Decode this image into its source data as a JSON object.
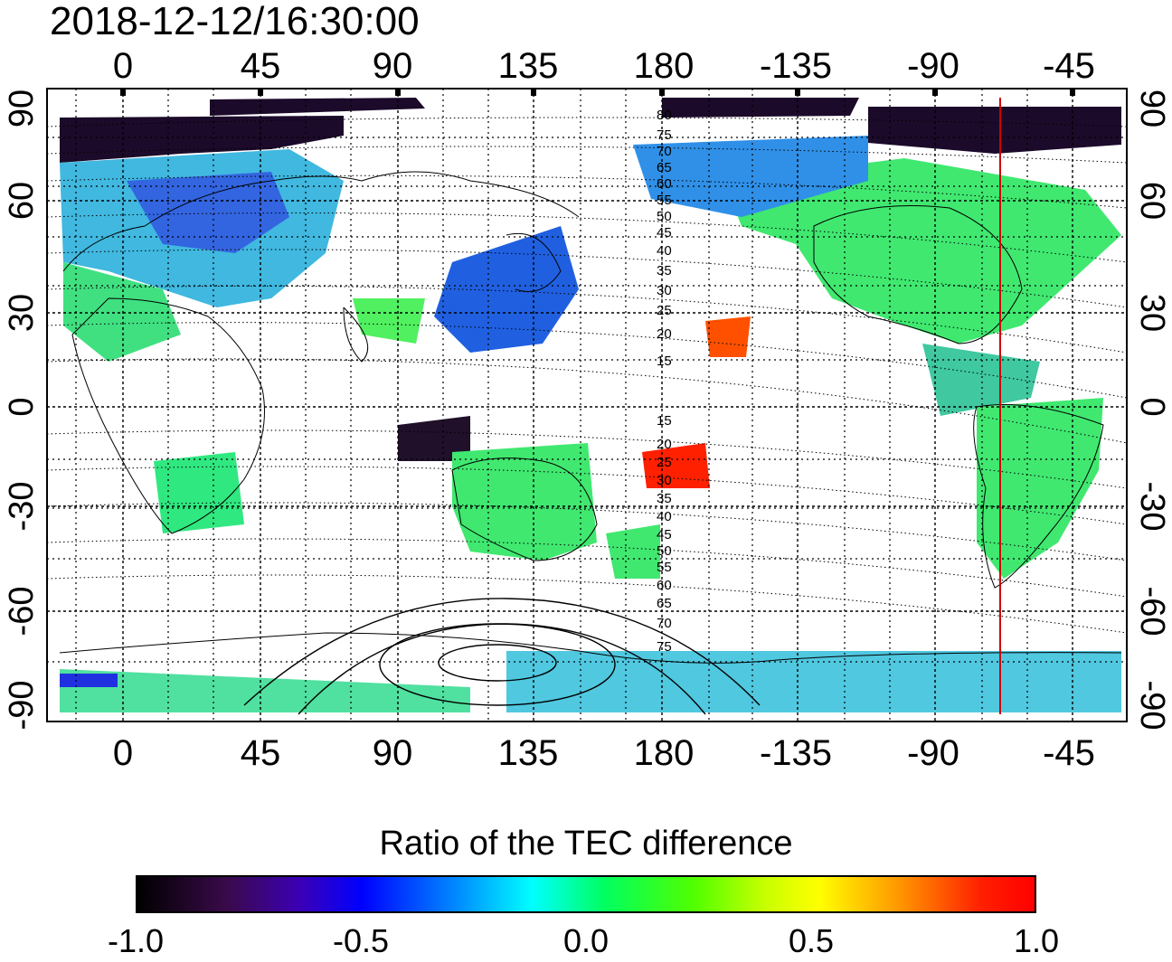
{
  "title": "2018-12-12/16:30:00",
  "map": {
    "lon_ticks": [
      "0",
      "45",
      "90",
      "135",
      "180",
      "-135",
      "-90",
      "-45"
    ],
    "lat_ticks": [
      "90",
      "60",
      "30",
      "0",
      "-30",
      "-60",
      "-90"
    ],
    "contour_labels_north": [
      "80",
      "75",
      "70",
      "65",
      "60",
      "55",
      "50",
      "45",
      "40",
      "35",
      "30",
      "25",
      "20",
      "15"
    ],
    "contour_labels_south": [
      "15",
      "20",
      "25",
      "30",
      "35",
      "40",
      "45",
      "50",
      "55",
      "60",
      "65",
      "70",
      "75"
    ],
    "terminator_color": "#d00000"
  },
  "colorbar": {
    "title": "Ratio of the TEC difference",
    "ticks": [
      "-1.0",
      "-0.5",
      "0.0",
      "0.5",
      "1.0"
    ],
    "range": [
      -1.0,
      1.0
    ]
  }
}
